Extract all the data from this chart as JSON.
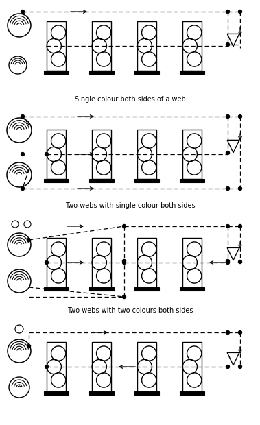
{
  "bg_color": "#ffffff",
  "captions": [
    "Single colour both sides of a web",
    "Two webs with single colour both sides",
    "Two webs with two colours both sides",
    ""
  ],
  "figsize": [
    3.79,
    6.2
  ],
  "dpi": 100
}
